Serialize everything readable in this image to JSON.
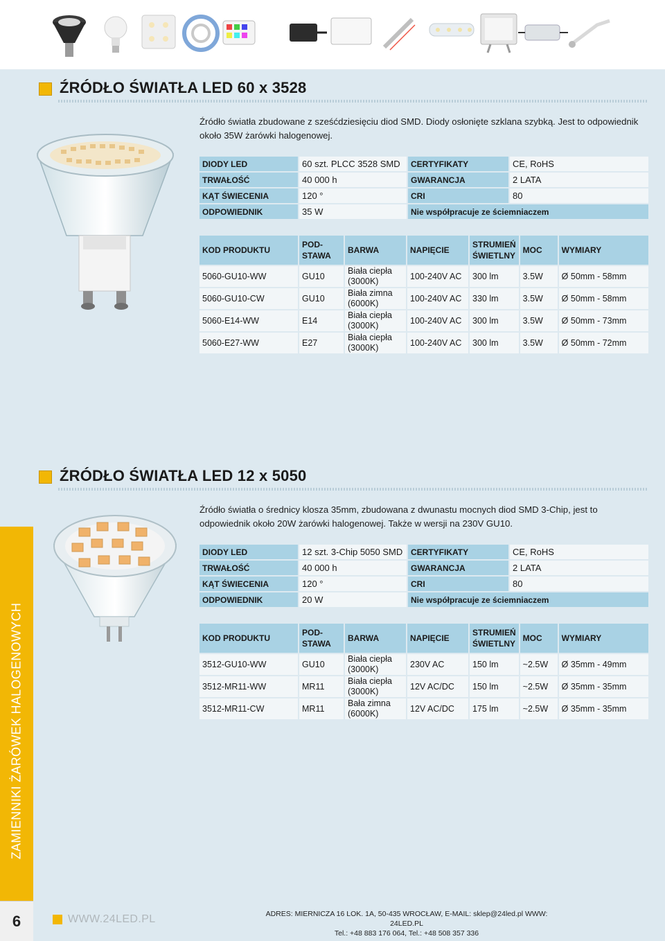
{
  "section1": {
    "title": "ŹRÓDŁO ŚWIATŁA LED 60 x 3528",
    "description_line1": "Źródło światła zbudowane z sześćdziesięciu diod SMD. Diody osłonięte szklana szybką. Jest to odpowiednik",
    "description_line2": "około 35W żarówki halogenowej.",
    "specs": {
      "diody_label": "DIODY LED",
      "diody_value": "60 szt. PLCC 3528 SMD",
      "cert_label": "CERTYFIKATY",
      "cert_value": "CE, RoHS",
      "trwalosc_label": "TRWAŁOŚĆ",
      "trwalosc_value": "40 000 h",
      "gwarancja_label": "GWARANCJA",
      "gwarancja_value": "2 LATA",
      "kat_label": "KĄT ŚWIECENIA",
      "kat_value": "120 °",
      "cri_label": "CRI",
      "cri_value": "80",
      "odp_label": "ODPOWIEDNIK",
      "odp_value": "35 W",
      "note": "Nie współpracuje ze ściemniaczem"
    },
    "products": [
      {
        "kod": "5060-GU10-WW",
        "podstawa": "GU10",
        "barwa1": "Biała ciepła",
        "barwa2": "(3000K)",
        "napiecie": "100-240V AC",
        "strumien": "300 lm",
        "moc": "3.5W",
        "wymiary": "Ø 50mm - 58mm"
      },
      {
        "kod": "5060-GU10-CW",
        "podstawa": "GU10",
        "barwa1": "Biała zimna",
        "barwa2": "(6000K)",
        "napiecie": "100-240V AC",
        "strumien": "330 lm",
        "moc": "3.5W",
        "wymiary": "Ø 50mm - 58mm"
      },
      {
        "kod": "5060-E14-WW",
        "podstawa": "E14",
        "barwa1": "Biała ciepła",
        "barwa2": "(3000K)",
        "napiecie": "100-240V AC",
        "strumien": "300 lm",
        "moc": "3.5W",
        "wymiary": "Ø 50mm - 73mm"
      },
      {
        "kod": "5060-E27-WW",
        "podstawa": "E27",
        "barwa1": "Biała ciepła",
        "barwa2": "(3000K)",
        "napiecie": "100-240V AC",
        "strumien": "300 lm",
        "moc": "3.5W",
        "wymiary": "Ø 50mm - 72mm"
      }
    ]
  },
  "section2": {
    "title": "ŹRÓDŁO ŚWIATŁA LED 12 x 5050",
    "description_line1": "Źródło światła  o średnicy klosza 35mm, zbudowana z dwunastu mocnych diod SMD 3-Chip, jest to",
    "description_line2": "odpowiednik około 20W żarówki halogenowej. Także w wersji na 230V GU10.",
    "specs": {
      "diody_label": "DIODY LED",
      "diody_value": "12 szt. 3-Chip 5050 SMD",
      "cert_label": "CERTYFIKATY",
      "cert_value": "CE, RoHS",
      "trwalosc_label": "TRWAŁOŚĆ",
      "trwalosc_value": "40 000 h",
      "gwarancja_label": "GWARANCJA",
      "gwarancja_value": "2 LATA",
      "kat_label": "KĄT ŚWIECENIA",
      "kat_value": "120 °",
      "cri_label": "CRI",
      "cri_value": "80",
      "odp_label": "ODPOWIEDNIK",
      "odp_value": "20 W",
      "note": "Nie współpracuje ze ściemniaczem"
    },
    "products": [
      {
        "kod": "3512-GU10-WW",
        "podstawa": "GU10",
        "barwa1": "Biała ciepła",
        "barwa2": "(3000K)",
        "napiecie": "230V AC",
        "strumien": "150 lm",
        "moc": "~2.5W",
        "wymiary": "Ø 35mm - 49mm"
      },
      {
        "kod": "3512-MR11-WW",
        "podstawa": "MR11",
        "barwa1": "Biała ciepła",
        "barwa2": "(3000K)",
        "napiecie": "12V AC/DC",
        "strumien": "150 lm",
        "moc": "~2.5W",
        "wymiary": "Ø 35mm - 35mm"
      },
      {
        "kod": "3512-MR11-CW",
        "podstawa": "MR11",
        "barwa1": "Bała zimna",
        "barwa2": "(6000K)",
        "napiecie": "12V AC/DC",
        "strumien": "175 lm",
        "moc": "~2.5W",
        "wymiary": "Ø 35mm - 35mm"
      }
    ]
  },
  "table_headers": {
    "kod": "KOD PRODUKTU",
    "podstawa1": "POD-",
    "podstawa2": "STAWA",
    "barwa": "BARWA",
    "napiecie": "NAPIĘCIE",
    "strumien1": "STRUMIEŃ",
    "strumien2": "ŚWIETLNY",
    "moc": "MOC",
    "wymiary": "WYMIARY"
  },
  "sidebar": {
    "label": "ZAMIENNIKI ŻARÓWEK HALOGENOWYCH"
  },
  "footer": {
    "page_number": "6",
    "website": "WWW.24LED.PL",
    "address_line1": "ADRES: MIERNICZA 16  LOK. 1A, 50-435 WROCŁAW, E-MAIL: sklep@24led.pl WWW: 24LED.PL",
    "address_line2": "Tel.: +48 883 176 064, Tel.: +48 508 357 336"
  },
  "colors": {
    "accent": "#f2b705",
    "header_cell": "#a9d2e4",
    "background": "#dde9f0"
  }
}
